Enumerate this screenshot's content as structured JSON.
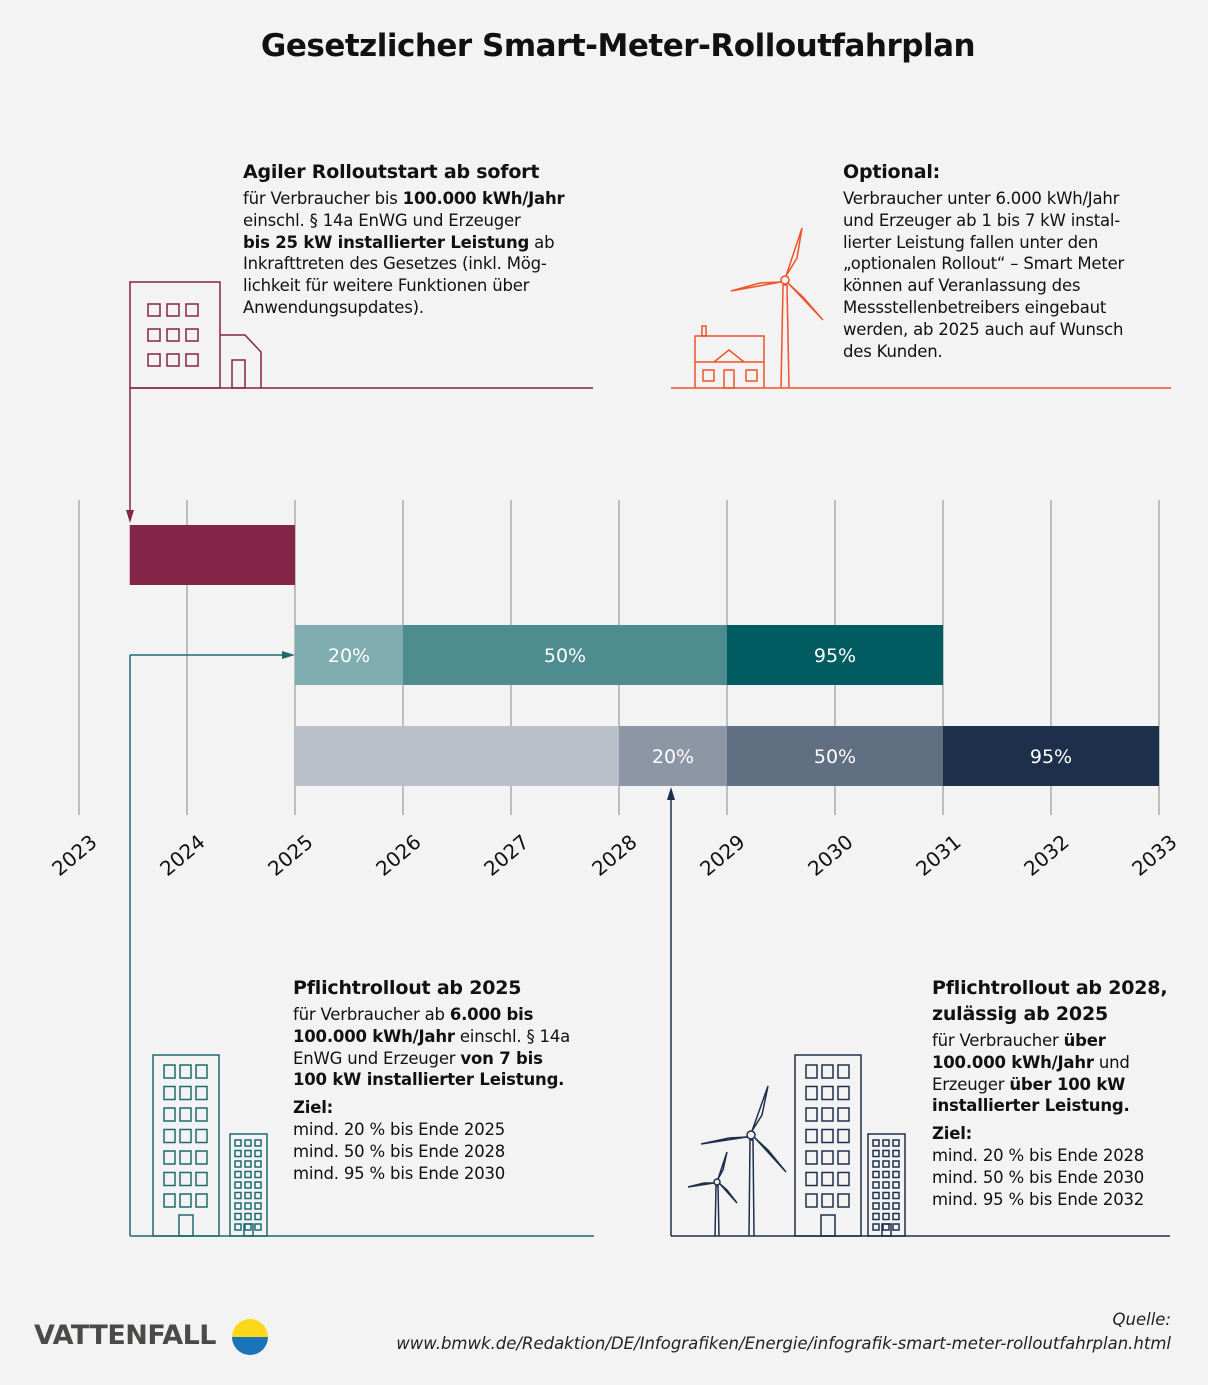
{
  "title": "Gesetzlicher Smart-Meter-Rolloutfahrplan",
  "colors": {
    "maroon": "#842548",
    "orange": "#f0522a",
    "teal": "#1d6b6e",
    "navy": "#1e2f4b",
    "background": "#f3f3f3"
  },
  "timeline": {
    "years": [
      "2023",
      "2024",
      "2025",
      "2026",
      "2027",
      "2028",
      "2029",
      "2030",
      "2031",
      "2032",
      "2033"
    ],
    "rows": [
      {
        "name": "agiler-rollout",
        "segments": [
          {
            "start": 2023.47,
            "end": 2025,
            "label": "",
            "color": "#842548"
          }
        ]
      },
      {
        "name": "pflichtrollout-2025",
        "segments": [
          {
            "start": 2025,
            "end": 2026,
            "label": "20%",
            "color": "#7fadb0"
          },
          {
            "start": 2026,
            "end": 2029,
            "label": "50%",
            "color": "#4f8c8f"
          },
          {
            "start": 2029,
            "end": 2031,
            "label": "95%",
            "color": "#005c60"
          }
        ]
      },
      {
        "name": "pflichtrollout-2028",
        "segments": [
          {
            "start": 2025,
            "end": 2028,
            "label": "",
            "color": "#b9c0ca"
          },
          {
            "start": 2028,
            "end": 2029,
            "label": "20%",
            "color": "#8d96a4"
          },
          {
            "start": 2029,
            "end": 2031,
            "label": "50%",
            "color": "#616f82"
          },
          {
            "start": 2031,
            "end": 2033,
            "label": "95%",
            "color": "#1e2f4b"
          }
        ]
      }
    ]
  },
  "blocks": {
    "agile": {
      "title": "Agiler Rolloutstart ab sofort",
      "lines": [
        [
          {
            "t": "für Verbraucher bis "
          },
          {
            "t": "100.000 kWh/Jahr",
            "b": true
          }
        ],
        [
          {
            "t": "einschl. § 14a EnWG und Erzeuger"
          }
        ],
        [
          {
            "t": "bis 25 kW installierter Leistung",
            "b": true
          },
          {
            "t": " ab"
          }
        ],
        [
          {
            "t": "Inkrafttreten des Gesetzes (inkl. Mög-"
          }
        ],
        [
          {
            "t": "lichkeit für weitere Funktionen über"
          }
        ],
        [
          {
            "t": "Anwendungsupdates)."
          }
        ]
      ]
    },
    "optional": {
      "title": "Optional:",
      "lines": [
        [
          {
            "t": "Verbraucher unter 6.000 kWh/Jahr"
          }
        ],
        [
          {
            "t": "und Erzeuger ab 1 bis 7 kW instal-"
          }
        ],
        [
          {
            "t": "lierter Leistung fallen unter den"
          }
        ],
        [
          {
            "t": "„optionalen Rollout“ – Smart Meter"
          }
        ],
        [
          {
            "t": "können auf Veranlassung des"
          }
        ],
        [
          {
            "t": "Messstellenbetreibers eingebaut"
          }
        ],
        [
          {
            "t": "werden, ab 2025 auch auf Wunsch"
          }
        ],
        [
          {
            "t": "des Kunden."
          }
        ]
      ]
    },
    "pflicht2025": {
      "title": "Pflichtrollout ab 2025",
      "lines": [
        [
          {
            "t": "für Verbraucher ab "
          },
          {
            "t": "6.000 bis",
            "b": true
          }
        ],
        [
          {
            "t": "100.000 kWh/Jahr",
            "b": true
          },
          {
            "t": " einschl. § 14a"
          }
        ],
        [
          {
            "t": "EnWG und Erzeuger "
          },
          {
            "t": "von 7 bis",
            "b": true
          }
        ],
        [
          {
            "t": "100 kW installierter Leistung.",
            "b": true
          }
        ],
        "gap",
        [
          {
            "t": "Ziel:",
            "b": true
          }
        ],
        [
          {
            "t": "mind. 20 % bis Ende 2025"
          }
        ],
        [
          {
            "t": "mind. 50 % bis Ende 2028"
          }
        ],
        [
          {
            "t": "mind. 95 % bis Ende 2030"
          }
        ]
      ]
    },
    "pflicht2028": {
      "title": "Pflichtrollout ab 2028,",
      "title2": "zulässig ab 2025",
      "lines": [
        [
          {
            "t": "für Verbraucher "
          },
          {
            "t": "über",
            "b": true
          }
        ],
        [
          {
            "t": "100.000 kWh/Jahr",
            "b": true
          },
          {
            "t": " und"
          }
        ],
        [
          {
            "t": "Erzeuger "
          },
          {
            "t": "über 100 kW",
            "b": true
          }
        ],
        [
          {
            "t": "installierter Leistung.",
            "b": true
          }
        ],
        "gap",
        [
          {
            "t": "Ziel:",
            "b": true
          }
        ],
        [
          {
            "t": "mind. 20 % bis Ende 2028"
          }
        ],
        [
          {
            "t": "mind. 50 % bis Ende 2030"
          }
        ],
        [
          {
            "t": "mind. 95 % bis Ende 2032"
          }
        ]
      ]
    }
  },
  "footer": {
    "logo": "VATTENFALL",
    "source_label": "Quelle:",
    "source_url": "www.bmwk.de/Redaktion/DE/Infografiken/Energie/infografik-smart-meter-rolloutfahrplan.html"
  },
  "icons": [
    "office-building-icon",
    "house-icon",
    "wind-turbine-icon",
    "apartment-buildings-icon"
  ]
}
